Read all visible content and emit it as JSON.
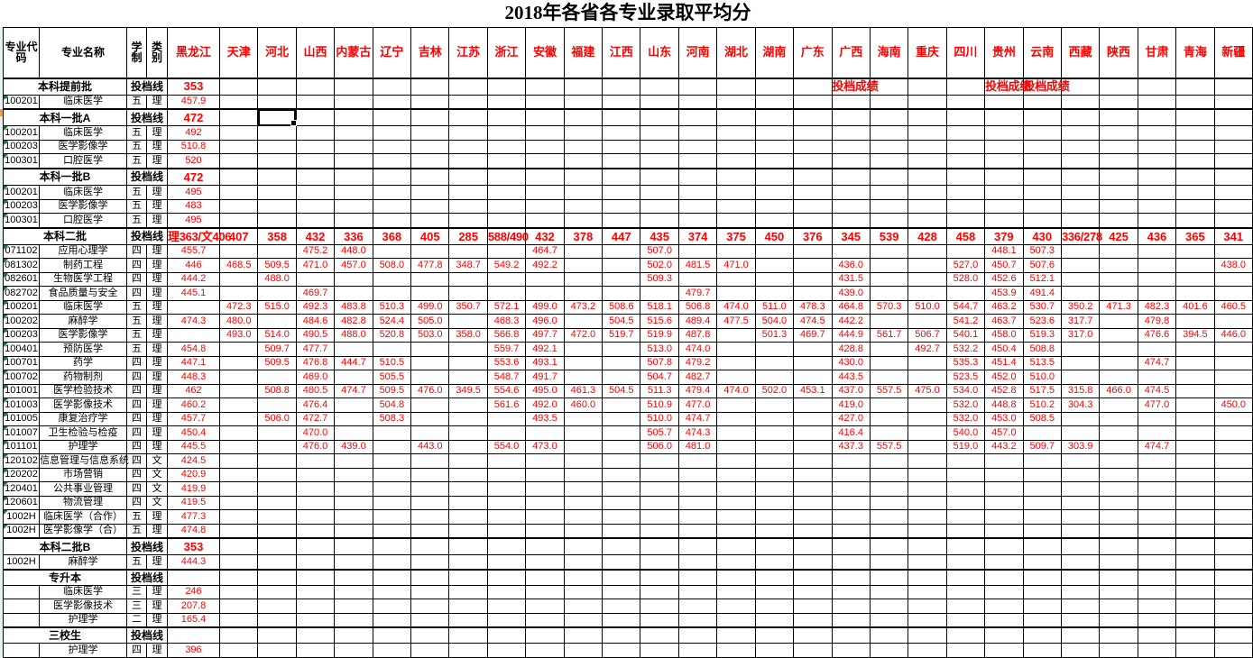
{
  "title": "2018年各省各专业录取平均分",
  "header": {
    "code": "专业代码",
    "name": "专业名称",
    "duration": "学制",
    "category": "类别",
    "provinces": [
      "黑龙江",
      "天津",
      "河北",
      "山西",
      "内蒙古",
      "辽宁",
      "吉林",
      "江苏",
      "浙江",
      "安徽",
      "福建",
      "江西",
      "山东",
      "河南",
      "湖北",
      "湖南",
      "广东",
      "广西",
      "海南",
      "重庆",
      "四川",
      "贵州",
      "云南",
      "西藏",
      "陕西",
      "甘肃",
      "青海",
      "新疆"
    ]
  },
  "colors": {
    "score_text": "#FF0000",
    "grid_line": "#000000",
    "error_marker_green": "#1F7244",
    "edge_marker_orange": "#E8A33D"
  },
  "selection": {
    "row_index": 2,
    "province": "河北"
  },
  "rows": [
    {
      "type": "section",
      "label": "本科提前批",
      "line": "投档线",
      "values": {
        "黑龙江": "353",
        "广西": "投档成绩",
        "贵州": "投档成绩",
        "云南": "投档成绩"
      }
    },
    {
      "type": "data",
      "code": "100201",
      "name": "临床医学",
      "duration": "五",
      "category": "理",
      "marker": true,
      "values": {
        "黑龙江": "457.9"
      }
    },
    {
      "type": "section",
      "label": "本科一批A",
      "line": "投档线",
      "values": {
        "黑龙江": "472"
      }
    },
    {
      "type": "data",
      "code": "100201",
      "name": "临床医学",
      "duration": "五",
      "category": "理",
      "marker": true,
      "values": {
        "黑龙江": "492"
      }
    },
    {
      "type": "data",
      "code": "100203",
      "name": "医学影像学",
      "duration": "五",
      "category": "理",
      "marker": true,
      "values": {
        "黑龙江": "510.8"
      }
    },
    {
      "type": "data",
      "code": "100301",
      "name": "口腔医学",
      "duration": "五",
      "category": "理",
      "marker": true,
      "values": {
        "黑龙江": "520"
      }
    },
    {
      "type": "section",
      "label": "本科一批B",
      "line": "投档线",
      "values": {
        "黑龙江": "472"
      }
    },
    {
      "type": "data",
      "code": "100201",
      "name": "临床医学",
      "duration": "五",
      "category": "理",
      "marker": true,
      "values": {
        "黑龙江": "495"
      }
    },
    {
      "type": "data",
      "code": "100203",
      "name": "医学影像学",
      "duration": "五",
      "category": "理",
      "marker": true,
      "values": {
        "黑龙江": "483"
      }
    },
    {
      "type": "data",
      "code": "100301",
      "name": "口腔医学",
      "duration": "五",
      "category": "理",
      "marker": true,
      "values": {
        "黑龙江": "495"
      }
    },
    {
      "type": "section",
      "label": "本科二批",
      "line": "投档线",
      "values": {
        "黑龙江": "理363/文406",
        "天津": "407",
        "河北": "358",
        "山西": "432",
        "内蒙古": "336",
        "辽宁": "368",
        "吉林": "405",
        "江苏": "285",
        "浙江": "588/490",
        "安徽": "432",
        "福建": "378",
        "江西": "447",
        "山东": "435",
        "河南": "374",
        "湖北": "375",
        "湖南": "450",
        "广东": "376",
        "广西": "345",
        "海南": "539",
        "重庆": "428",
        "四川": "458",
        "贵州": "379",
        "云南": "430",
        "西藏": "336/278",
        "陕西": "425",
        "甘肃": "436",
        "青海": "365",
        "新疆": "341"
      }
    },
    {
      "type": "data",
      "code": "071102",
      "name": "应用心理学",
      "duration": "四",
      "category": "理",
      "marker": true,
      "values": {
        "黑龙江": "455.7",
        "山西": "475.2",
        "内蒙古": "448.0",
        "安徽": "464.7",
        "山东": "507.0",
        "贵州": "448.1",
        "云南": "507.3"
      }
    },
    {
      "type": "data",
      "code": "081302",
      "name": "制药工程",
      "duration": "四",
      "category": "理",
      "marker": true,
      "values": {
        "黑龙江": "446",
        "天津": "468.5",
        "河北": "509.5",
        "山西": "471.0",
        "内蒙古": "457.0",
        "辽宁": "508.0",
        "吉林": "477.8",
        "江苏": "348.7",
        "浙江": "549.2",
        "安徽": "492.2",
        "山东": "502.0",
        "河南": "481.5",
        "湖北": "471.0",
        "广西": "436.0",
        "四川": "527.0",
        "贵州": "450.7",
        "云南": "507.6",
        "新疆": "438.0"
      }
    },
    {
      "type": "data",
      "code": "082601",
      "name": "生物医学工程",
      "duration": "四",
      "category": "理",
      "marker": true,
      "values": {
        "黑龙江": "444.2",
        "河北": "488.0",
        "山东": "509.3",
        "广西": "431.5",
        "四川": "528.0",
        "贵州": "452.6",
        "云南": "512.1"
      }
    },
    {
      "type": "data",
      "code": "082702",
      "name": "食品质量与安全",
      "duration": "四",
      "category": "理",
      "marker": true,
      "values": {
        "黑龙江": "445.1",
        "山西": "469.7",
        "河南": "479.7",
        "广西": "439.0",
        "贵州": "453.9",
        "云南": "491.4"
      }
    },
    {
      "type": "data",
      "code": "100201",
      "name": "临床医学",
      "duration": "五",
      "category": "理",
      "marker": true,
      "values": {
        "天津": "472.3",
        "河北": "515.0",
        "山西": "492.3",
        "内蒙古": "483.8",
        "辽宁": "510.3",
        "吉林": "499.0",
        "江苏": "350.7",
        "浙江": "572.1",
        "安徽": "499.0",
        "福建": "473.2",
        "江西": "508.6",
        "山东": "518.1",
        "河南": "506.8",
        "湖北": "474.0",
        "湖南": "511.0",
        "广东": "478.3",
        "广西": "464.8",
        "海南": "570.3",
        "重庆": "510.0",
        "四川": "544.7",
        "贵州": "463.2",
        "云南": "530.7",
        "西藏": "350.2",
        "陕西": "471.3",
        "甘肃": "482.3",
        "青海": "401.6",
        "新疆": "460.5"
      }
    },
    {
      "type": "data",
      "code": "100202",
      "name": "麻醉学",
      "duration": "五",
      "category": "理",
      "marker": true,
      "values": {
        "黑龙江": "474.3",
        "天津": "480.0",
        "山西": "484.6",
        "内蒙古": "482.8",
        "辽宁": "524.4",
        "吉林": "505.0",
        "浙江": "468.3",
        "安徽": "496.0",
        "江西": "504.5",
        "山东": "515.6",
        "河南": "489.4",
        "湖北": "477.5",
        "湖南": "504.0",
        "广东": "474.5",
        "广西": "442.2",
        "四川": "541.2",
        "贵州": "463.7",
        "云南": "523.6",
        "西藏": "317.7",
        "甘肃": "479.8"
      }
    },
    {
      "type": "data",
      "code": "100203",
      "name": "医学影像学",
      "duration": "五",
      "category": "理",
      "marker": true,
      "values": {
        "天津": "493.0",
        "河北": "514.0",
        "山西": "490.5",
        "内蒙古": "488.0",
        "辽宁": "520.8",
        "吉林": "503.0",
        "江苏": "358.0",
        "浙江": "566.8",
        "安徽": "497.7",
        "福建": "472.0",
        "江西": "519.7",
        "山东": "519.9",
        "河南": "487.8",
        "湖南": "501.3",
        "广东": "469.7",
        "广西": "444.9",
        "海南": "561.7",
        "重庆": "506.7",
        "四川": "540.1",
        "贵州": "458.0",
        "云南": "519.3",
        "西藏": "317.0",
        "甘肃": "476.6",
        "青海": "394.5",
        "新疆": "446.0"
      }
    },
    {
      "type": "data",
      "code": "100401",
      "name": "预防医学",
      "duration": "五",
      "category": "理",
      "marker": true,
      "values": {
        "黑龙江": "454.8",
        "河北": "509.7",
        "山西": "477.7",
        "浙江": "559.7",
        "安徽": "492.1",
        "山东": "513.0",
        "河南": "474.0",
        "广西": "428.8",
        "重庆": "492.7",
        "四川": "532.2",
        "贵州": "450.4",
        "云南": "508.8"
      }
    },
    {
      "type": "data",
      "code": "100701",
      "name": "药学",
      "duration": "四",
      "category": "理",
      "marker": true,
      "values": {
        "黑龙江": "447.1",
        "河北": "509.5",
        "山西": "476.8",
        "内蒙古": "444.7",
        "辽宁": "510.5",
        "浙江": "553.6",
        "安徽": "493.1",
        "山东": "507.8",
        "河南": "479.2",
        "广西": "430.0",
        "四川": "535.3",
        "贵州": "451.4",
        "云南": "513.5",
        "甘肃": "474.7"
      }
    },
    {
      "type": "data",
      "code": "100702",
      "name": "药物制剂",
      "duration": "四",
      "category": "理",
      "marker": true,
      "values": {
        "黑龙江": "448.3",
        "山西": "469.0",
        "辽宁": "505.5",
        "浙江": "548.7",
        "安徽": "491.7",
        "山东": "504.7",
        "河南": "482.7",
        "广西": "443.5",
        "四川": "523.5",
        "贵州": "452.0",
        "云南": "510.0"
      }
    },
    {
      "type": "data",
      "code": "101001",
      "name": "医学检验技术",
      "duration": "四",
      "category": "理",
      "marker": true,
      "values": {
        "黑龙江": "462",
        "河北": "508.8",
        "山西": "480.5",
        "内蒙古": "474.7",
        "辽宁": "509.5",
        "吉林": "476.0",
        "江苏": "349.5",
        "浙江": "554.6",
        "安徽": "495.0",
        "福建": "461.3",
        "江西": "504.5",
        "山东": "511.3",
        "河南": "479.4",
        "湖北": "474.0",
        "湖南": "502.0",
        "广东": "453.1",
        "广西": "437.0",
        "海南": "557.5",
        "重庆": "475.0",
        "四川": "534.0",
        "贵州": "452.8",
        "云南": "517.5",
        "西藏": "315.8",
        "陕西": "466.0",
        "甘肃": "474.5"
      }
    },
    {
      "type": "data",
      "code": "101003",
      "name": "医学影像技术",
      "duration": "四",
      "category": "理",
      "marker": true,
      "values": {
        "黑龙江": "460.2",
        "山西": "476.4",
        "辽宁": "504.8",
        "浙江": "561.6",
        "安徽": "492.0",
        "福建": "460.0",
        "山东": "510.9",
        "河南": "477.0",
        "广西": "419.0",
        "四川": "532.0",
        "贵州": "448.8",
        "云南": "510.2",
        "西藏": "304.3",
        "甘肃": "477.0",
        "新疆": "450.0"
      }
    },
    {
      "type": "data",
      "code": "101005",
      "name": "康复治疗学",
      "duration": "四",
      "category": "理",
      "marker": true,
      "values": {
        "黑龙江": "457.7",
        "河北": "506.0",
        "山西": "472.7",
        "辽宁": "508.3",
        "安徽": "493.5",
        "山东": "510.0",
        "河南": "474.7",
        "广西": "427.0",
        "四川": "532.0",
        "贵州": "453.0",
        "云南": "508.5"
      }
    },
    {
      "type": "data",
      "code": "101007",
      "name": "卫生检验与检疫",
      "duration": "四",
      "category": "理",
      "marker": true,
      "values": {
        "黑龙江": "450.4",
        "山西": "470.0",
        "山东": "505.7",
        "河南": "474.3",
        "广西": "416.4",
        "四川": "540.0",
        "贵州": "457.0"
      }
    },
    {
      "type": "data",
      "code": "101101",
      "name": "护理学",
      "duration": "四",
      "category": "理",
      "marker": true,
      "values": {
        "黑龙江": "445.5",
        "山西": "476.0",
        "内蒙古": "439.0",
        "吉林": "443.0",
        "浙江": "554.0",
        "安徽": "473.0",
        "山东": "506.0",
        "河南": "481.0",
        "广西": "437.3",
        "海南": "557.5",
        "四川": "519.0",
        "贵州": "443.2",
        "云南": "509.7",
        "西藏": "303.9",
        "甘肃": "474.7"
      }
    },
    {
      "type": "data",
      "code": "120102",
      "name": "信息管理与信息系统",
      "duration": "四",
      "category": "文",
      "marker": true,
      "values": {
        "黑龙江": "424.5"
      }
    },
    {
      "type": "data",
      "code": "120202",
      "name": "市场营销",
      "duration": "四",
      "category": "文",
      "marker": true,
      "values": {
        "黑龙江": "420.9"
      }
    },
    {
      "type": "data",
      "code": "120401",
      "name": "公共事业管理",
      "duration": "四",
      "category": "文",
      "marker": true,
      "values": {
        "黑龙江": "419.9"
      }
    },
    {
      "type": "data",
      "code": "120601",
      "name": "物流管理",
      "duration": "四",
      "category": "文",
      "marker": true,
      "values": {
        "黑龙江": "419.5"
      }
    },
    {
      "type": "data",
      "code": "1002H",
      "name": "临床医学（合作）",
      "duration": "五",
      "category": "理",
      "marker": true,
      "values": {
        "黑龙江": "477.3"
      }
    },
    {
      "type": "data",
      "code": "1002H",
      "name": "医学影像学（合）",
      "duration": "五",
      "category": "理",
      "marker": true,
      "values": {
        "黑龙江": "474.8"
      }
    },
    {
      "type": "section",
      "label": "本科二批B",
      "line": "投档线",
      "values": {
        "黑龙江": "353"
      }
    },
    {
      "type": "data",
      "code": "1002H",
      "name": "麻醉学",
      "duration": "五",
      "category": "理",
      "marker": false,
      "values": {
        "黑龙江": "444.3"
      }
    },
    {
      "type": "section",
      "label": "专升本",
      "line": "投档线",
      "values": {}
    },
    {
      "type": "data",
      "code": "",
      "name": "临床医学",
      "duration": "三",
      "category": "理",
      "marker": false,
      "values": {
        "黑龙江": "246"
      }
    },
    {
      "type": "data",
      "code": "",
      "name": "医学影像技术",
      "duration": "三",
      "category": "理",
      "marker": false,
      "values": {
        "黑龙江": "207.8"
      }
    },
    {
      "type": "data",
      "code": "",
      "name": "护理学",
      "duration": "二",
      "category": "理",
      "marker": false,
      "values": {
        "黑龙江": "165.4"
      }
    },
    {
      "type": "section",
      "label": "三校生",
      "line": "投档线",
      "values": {}
    },
    {
      "type": "data",
      "code": "",
      "name": "护理学",
      "duration": "四",
      "category": "理",
      "marker": false,
      "values": {
        "黑龙江": "396"
      }
    }
  ]
}
